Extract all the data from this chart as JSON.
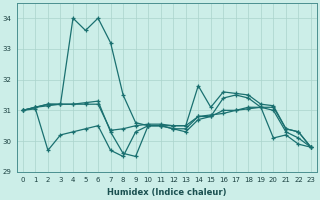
{
  "xlabel": "Humidex (Indice chaleur)",
  "xlim": [
    -0.5,
    23.5
  ],
  "ylim": [
    29,
    34.5
  ],
  "yticks": [
    29,
    30,
    31,
    32,
    33,
    34
  ],
  "xticks": [
    0,
    1,
    2,
    3,
    4,
    5,
    6,
    7,
    8,
    9,
    10,
    11,
    12,
    13,
    14,
    15,
    16,
    17,
    18,
    19,
    20,
    21,
    22,
    23
  ],
  "bg_color": "#cceee8",
  "line_color": "#1a7070",
  "grid_color": "#aad4cc",
  "series": [
    [
      31.0,
      31.1,
      31.2,
      31.2,
      34.0,
      33.6,
      34.0,
      33.2,
      31.5,
      30.6,
      30.5,
      30.5,
      30.4,
      30.3,
      30.7,
      30.8,
      31.4,
      31.5,
      31.4,
      31.1,
      30.1,
      30.2,
      29.9,
      29.8
    ],
    [
      31.0,
      31.1,
      31.2,
      31.2,
      31.2,
      31.25,
      31.3,
      30.3,
      29.6,
      29.5,
      30.5,
      30.5,
      30.4,
      30.4,
      30.8,
      30.85,
      30.9,
      31.0,
      31.05,
      31.1,
      31.1,
      30.4,
      30.3,
      29.8
    ],
    [
      31.0,
      31.05,
      29.7,
      30.2,
      30.3,
      30.4,
      30.5,
      29.7,
      29.5,
      30.3,
      30.5,
      30.5,
      30.5,
      30.5,
      30.8,
      30.8,
      31.0,
      31.0,
      31.1,
      31.1,
      31.0,
      30.3,
      30.1,
      29.8
    ],
    [
      31.0,
      31.1,
      31.15,
      31.2,
      31.2,
      31.2,
      31.2,
      30.35,
      30.4,
      30.5,
      30.55,
      30.55,
      30.5,
      30.5,
      31.8,
      31.1,
      31.6,
      31.55,
      31.5,
      31.2,
      31.15,
      30.4,
      30.3,
      29.8
    ]
  ]
}
